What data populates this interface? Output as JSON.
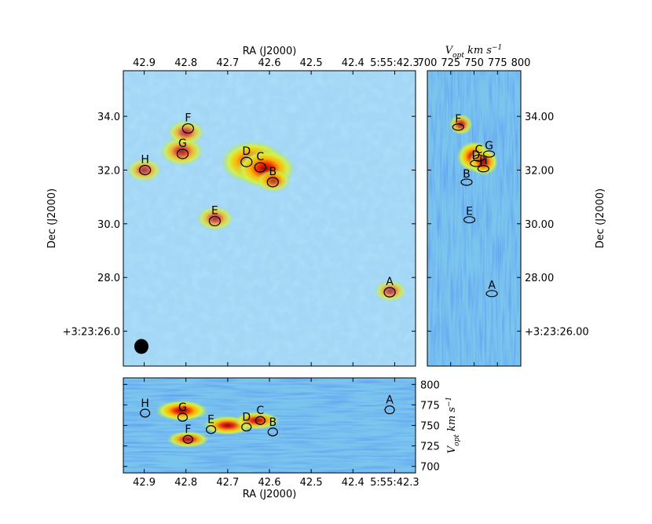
{
  "chart_data": [
    {
      "type": "heatmap",
      "panel": "moment-map",
      "xlabel": "RA (J2000)",
      "ylabel": "Dec (J2000)",
      "x_ticks": [
        "42.9",
        "42.8",
        "42.7",
        "42.6",
        "42.5",
        "42.4",
        "5:55:42.3"
      ],
      "x_tick_values": [
        42.9,
        42.8,
        42.7,
        42.6,
        42.5,
        42.4,
        42.3
      ],
      "xlim": [
        42.95,
        42.25
      ],
      "y_ticks": [
        "+3:23:26.0",
        "28.0",
        "30.0",
        "32.0",
        "34.0"
      ],
      "y_tick_values": [
        26.0,
        28.0,
        30.0,
        32.0,
        34.0
      ],
      "ylim": [
        24.7,
        35.7
      ],
      "beam": "filled-ellipse",
      "sources": [
        {
          "label": "A",
          "ra": 42.312,
          "dec": 27.45
        },
        {
          "label": "B",
          "ra": 42.592,
          "dec": 31.55
        },
        {
          "label": "C",
          "ra": 42.622,
          "dec": 32.1
        },
        {
          "label": "D",
          "ra": 42.655,
          "dec": 32.3
        },
        {
          "label": "E",
          "ra": 42.731,
          "dec": 30.1
        },
        {
          "label": "F",
          "ra": 42.795,
          "dec": 33.55
        },
        {
          "label": "G",
          "ra": 42.808,
          "dec": 32.6
        },
        {
          "label": "H",
          "ra": 42.898,
          "dec": 32.0
        }
      ],
      "emission": [
        {
          "ra": 42.64,
          "dec": 32.3,
          "peak": 1.0
        },
        {
          "ra": 42.61,
          "dec": 32.05,
          "peak": 0.9
        },
        {
          "ra": 42.81,
          "dec": 32.7,
          "peak": 0.55
        },
        {
          "ra": 42.8,
          "dec": 33.4,
          "peak": 0.4
        },
        {
          "ra": 42.73,
          "dec": 30.2,
          "peak": 0.4
        },
        {
          "ra": 42.59,
          "dec": 31.6,
          "peak": 0.35
        },
        {
          "ra": 42.9,
          "dec": 32.0,
          "peak": 0.35
        },
        {
          "ra": 42.31,
          "dec": 27.5,
          "peak": 0.3
        }
      ]
    },
    {
      "type": "heatmap",
      "panel": "dec-velocity",
      "xlabel": "V_opt km s^-1",
      "ylabel": "Dec (J2000)",
      "x_ticks": [
        "700",
        "725",
        "750",
        "775",
        "800"
      ],
      "x_tick_values": [
        700,
        725,
        750,
        775,
        800
      ],
      "xlim": [
        700,
        800
      ],
      "y_ticks": [
        "+3:23:26.00",
        "28.00",
        "30.00",
        "32.00",
        "34.00"
      ],
      "y_tick_values": [
        26.0,
        28.0,
        30.0,
        32.0,
        34.0
      ],
      "ylim": [
        24.7,
        35.7
      ],
      "sources": [
        {
          "label": "A",
          "vel": 769,
          "dec": 27.4
        },
        {
          "label": "B",
          "vel": 742,
          "dec": 31.55
        },
        {
          "label": "C",
          "vel": 755,
          "dec": 32.45
        },
        {
          "label": "D",
          "vel": 752,
          "dec": 32.25
        },
        {
          "label": "E",
          "vel": 745,
          "dec": 30.15
        },
        {
          "label": "F",
          "vel": 733,
          "dec": 33.6
        },
        {
          "label": "G",
          "vel": 766,
          "dec": 32.6
        },
        {
          "label": "H",
          "vel": 760,
          "dec": 32.05
        }
      ],
      "emission": [
        {
          "vel": 750,
          "dec": 32.5,
          "peak": 1.0
        },
        {
          "vel": 760,
          "dec": 32.3,
          "peak": 0.8
        },
        {
          "vel": 736,
          "dec": 33.7,
          "peak": 0.5
        }
      ]
    },
    {
      "type": "heatmap",
      "panel": "velocity-ra",
      "xlabel": "RA (J2000)",
      "ylabel": "V_opt km s^-1",
      "x_ticks": [
        "42.9",
        "42.8",
        "42.7",
        "42.6",
        "42.5",
        "42.4",
        "5:55:42.3"
      ],
      "x_tick_values": [
        42.9,
        42.8,
        42.7,
        42.6,
        42.5,
        42.4,
        42.3
      ],
      "xlim": [
        42.95,
        42.25
      ],
      "y_ticks": [
        "700",
        "725",
        "750",
        "775",
        "800"
      ],
      "y_tick_values": [
        700,
        725,
        750,
        775,
        800
      ],
      "ylim": [
        692,
        808
      ],
      "sources": [
        {
          "label": "A",
          "ra": 42.312,
          "vel": 769
        },
        {
          "label": "B",
          "ra": 42.592,
          "vel": 742
        },
        {
          "label": "C",
          "ra": 42.622,
          "vel": 756
        },
        {
          "label": "D",
          "ra": 42.655,
          "vel": 748
        },
        {
          "label": "E",
          "ra": 42.74,
          "vel": 745
        },
        {
          "label": "F",
          "ra": 42.795,
          "vel": 733
        },
        {
          "label": "G",
          "ra": 42.808,
          "vel": 760
        },
        {
          "label": "H",
          "ra": 42.898,
          "vel": 765
        }
      ],
      "emission": [
        {
          "ra": 42.81,
          "vel": 768,
          "peak": 1.0
        },
        {
          "ra": 42.7,
          "vel": 750,
          "peak": 0.9
        },
        {
          "ra": 42.63,
          "vel": 756,
          "peak": 0.8
        },
        {
          "ra": 42.795,
          "vel": 733,
          "peak": 0.7
        }
      ]
    }
  ],
  "labels": {
    "main_top": "RA (J2000)",
    "main_left": "Dec (J2000)",
    "bottom_axis": "RA (J2000)",
    "side_right": "Dec (J2000)",
    "vel_unit_base": "V",
    "vel_unit_sub": "opt",
    "vel_unit_km": "km s",
    "vel_unit_exp": "−1"
  },
  "colors": {
    "background": "#a3d7f5",
    "contour": "#000000",
    "peak": "#cc1a10"
  }
}
